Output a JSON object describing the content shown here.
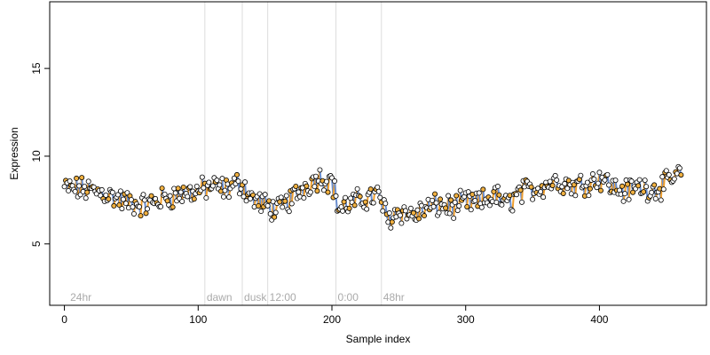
{
  "chart_data": {
    "type": "scatter",
    "xlabel": "Sample index",
    "ylabel": "Expression",
    "xlim": [
      -11,
      480
    ],
    "ylim": [
      1.5,
      18.8
    ],
    "xticks": [
      0,
      100,
      200,
      300,
      400
    ],
    "yticks": [
      5,
      10,
      15
    ],
    "vlines": [
      {
        "x": 105,
        "label": "dawn"
      },
      {
        "x": 133,
        "label": "dusk"
      },
      {
        "x": 152,
        "label": "12:00"
      },
      {
        "x": 203,
        "label": "0:00"
      },
      {
        "x": 237,
        "label": "48hr"
      }
    ],
    "annotations": [
      {
        "x": 3,
        "y": 2,
        "label": "24hr"
      }
    ],
    "segment_colors": {
      "up": "#f0a030",
      "down": "#6a8fd0",
      "flat": "#999999"
    },
    "point_colors": {
      "series_a": "#ffffff",
      "series_b": "#f0b040"
    },
    "anchors": [
      [
        0,
        8.2
      ],
      [
        15,
        8.1
      ],
      [
        30,
        7.9
      ],
      [
        45,
        7.4
      ],
      [
        60,
        7.2
      ],
      [
        75,
        7.6
      ],
      [
        90,
        7.9
      ],
      [
        100,
        8.0
      ],
      [
        110,
        8.3
      ],
      [
        120,
        8.1
      ],
      [
        132,
        8.5
      ],
      [
        140,
        7.6
      ],
      [
        150,
        7.2
      ],
      [
        160,
        6.9
      ],
      [
        170,
        7.6
      ],
      [
        180,
        8.3
      ],
      [
        190,
        8.8
      ],
      [
        200,
        8.6
      ],
      [
        205,
        7.0
      ],
      [
        215,
        7.3
      ],
      [
        225,
        7.6
      ],
      [
        235,
        7.8
      ],
      [
        242,
        6.4
      ],
      [
        250,
        6.9
      ],
      [
        262,
        6.6
      ],
      [
        270,
        7.0
      ],
      [
        280,
        7.2
      ],
      [
        292,
        7.1
      ],
      [
        300,
        7.4
      ],
      [
        310,
        7.3
      ],
      [
        322,
        7.8
      ],
      [
        330,
        7.2
      ],
      [
        340,
        7.9
      ],
      [
        350,
        8.1
      ],
      [
        360,
        8.4
      ],
      [
        370,
        8.6
      ],
      [
        380,
        8.3
      ],
      [
        395,
        8.6
      ],
      [
        402,
        8.8
      ],
      [
        410,
        8.2
      ],
      [
        420,
        8.0
      ],
      [
        430,
        8.3
      ],
      [
        440,
        8.1
      ],
      [
        450,
        8.4
      ],
      [
        462,
        9.1
      ]
    ],
    "spread": 0.55,
    "n_points": 462
  }
}
